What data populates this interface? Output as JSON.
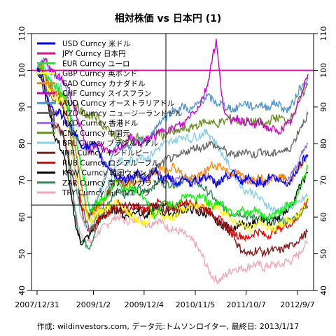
{
  "chart_data": {
    "type": "line",
    "title": "相対株価 vs 日本円 (1)",
    "caption": "作成: wildinvestors.com, データ元:トムソンロイター, 最終日: 2013/1/17",
    "x_tick_labels": [
      "2007/12/31",
      "2009/1/2",
      "2009/12/4",
      "2010/11/5",
      "2011/10/7",
      "2012/9/7"
    ],
    "x_tick_positions": [
      0,
      0.208,
      0.395,
      0.584,
      0.772,
      0.961
    ],
    "y_ticks": [
      40,
      50,
      60,
      70,
      80,
      90,
      100,
      110
    ],
    "ylim": [
      40,
      110
    ],
    "reference_line": 100,
    "legend": [
      {
        "name": "USD Curncy 米ドル",
        "color": "#0000ff"
      },
      {
        "name": "JPY Curncy 日本円",
        "color": "#ee0099"
      },
      {
        "name": "EUR Curncy ユーロ",
        "color": "#00ff00"
      },
      {
        "name": "GBP Curncy 英ポンド",
        "color": "#ffff00"
      },
      {
        "name": "CAD Curncy カナダドル",
        "color": "#ff8800"
      },
      {
        "name": "CHF Curncy スイスフラン",
        "color": "#cc00cc"
      },
      {
        "name": "AUD Curncy オーストラリアドル",
        "color": "#4f94cd"
      },
      {
        "name": "NZD Curncy ニュージーランドドル",
        "color": "#666666"
      },
      {
        "name": "HKD Curncy 香港ドル",
        "color": "#9370db"
      },
      {
        "name": "CNY Curncy 中国元",
        "color": "#6b8e23"
      },
      {
        "name": "BRL Curncy ブラジルレアル",
        "color": "#87ceeb"
      },
      {
        "name": "INR Curncy インドルピー",
        "color": "#8b1a1a"
      },
      {
        "name": "RUB Curncy ロシアルーブル",
        "color": "#ee0000"
      },
      {
        "name": "KRW Curncy 韓国ウォン",
        "color": "#000000"
      },
      {
        "name": "ZAR Curncy 南アフリカランド",
        "color": "#2e8b57"
      },
      {
        "name": "TRY Curncy 新トルコリラ",
        "color": "#f4a6b4"
      }
    ],
    "series": [
      {
        "name": "USD Curncy 米ドル",
        "color": "#0000ff",
        "values": [
          100,
          99,
          94,
          91,
          88,
          89,
          87,
          85,
          84,
          82,
          80,
          79,
          79,
          80,
          78,
          75,
          74,
          73,
          71,
          71,
          70,
          71,
          71,
          72,
          70,
          70,
          72,
          73,
          71,
          70,
          71,
          70,
          69,
          70,
          71,
          69,
          70,
          70,
          71,
          71,
          70,
          69,
          70,
          71,
          71,
          72,
          70,
          69,
          71,
          70,
          69,
          70,
          69,
          71,
          71,
          70,
          70,
          69,
          70,
          72,
          74,
          76,
          77
        ]
      },
      {
        "name": "JPY Curncy 日本円",
        "color": "#ee0099",
        "values": [
          100,
          100,
          100,
          100,
          100,
          100,
          100,
          100,
          100,
          100,
          100,
          100,
          100,
          100,
          100,
          100,
          100,
          100,
          100,
          100,
          100,
          100,
          100,
          100,
          100,
          100,
          100,
          100,
          100,
          100,
          100,
          100,
          100,
          100,
          100,
          100,
          100,
          100,
          100,
          100,
          100,
          100,
          100,
          100,
          100,
          100,
          100,
          100,
          100,
          100,
          100,
          100,
          100,
          100,
          100,
          100,
          100,
          100,
          100,
          100,
          100,
          100,
          100
        ]
      },
      {
        "name": "EUR Curncy ユーロ",
        "color": "#00ff00",
        "values": [
          100,
          101,
          99,
          97,
          96,
          95,
          93,
          90,
          85,
          80,
          74,
          69,
          62,
          63,
          64,
          65,
          66,
          68,
          70,
          69,
          67,
          68,
          68,
          67,
          66,
          65,
          62,
          60,
          62,
          64,
          64,
          63,
          64,
          65,
          66,
          66,
          65,
          66,
          66,
          64,
          63,
          64,
          64,
          63,
          62,
          61,
          62,
          62,
          61,
          61,
          62,
          61,
          60,
          60,
          61,
          61,
          62,
          63,
          63,
          64,
          68,
          71,
          74
        ]
      },
      {
        "name": "GBP Curncy 英ポンド",
        "color": "#ffff00",
        "values": [
          100,
          99,
          97,
          94,
          93,
          92,
          91,
          86,
          78,
          71,
          66,
          62,
          59,
          60,
          61,
          62,
          63,
          63,
          64,
          64,
          62,
          61,
          60,
          59,
          58,
          59,
          60,
          61,
          61,
          60,
          60,
          60,
          61,
          62,
          62,
          63,
          63,
          63,
          64,
          64,
          63,
          63,
          62,
          61,
          60,
          59,
          58,
          58,
          57,
          57,
          58,
          59,
          58,
          57,
          57,
          57,
          58,
          59,
          59,
          60,
          61,
          63,
          65
        ]
      },
      {
        "name": "CAD Curncy カナダドル",
        "color": "#ff8800",
        "values": [
          100,
          101,
          99,
          95,
          94,
          94,
          93,
          90,
          84,
          77,
          70,
          64,
          59,
          61,
          63,
          64,
          66,
          68,
          70,
          70,
          68,
          69,
          69,
          70,
          70,
          70,
          71,
          72,
          73,
          73,
          73,
          74,
          73,
          72,
          71,
          70,
          71,
          71,
          72,
          73,
          74,
          74,
          74,
          73,
          72,
          72,
          72,
          71,
          70,
          70,
          71,
          71,
          70,
          70,
          71,
          71,
          71,
          70,
          70,
          71,
          74,
          75,
          77
        ]
      },
      {
        "name": "CHF Curncy スイスフラン",
        "color": "#cc00cc",
        "values": [
          100,
          101,
          103,
          100,
          99,
          98,
          97,
          96,
          92,
          88,
          84,
          80,
          78,
          79,
          80,
          79,
          78,
          77,
          78,
          79,
          80,
          82,
          81,
          80,
          80,
          81,
          82,
          82,
          83,
          84,
          84,
          84,
          85,
          85,
          86,
          88,
          89,
          90,
          93,
          96,
          103,
          108,
          96,
          88,
          86,
          87,
          87,
          86,
          86,
          85,
          85,
          86,
          85,
          84,
          84,
          83,
          84,
          85,
          86,
          88,
          92,
          96,
          99
        ]
      },
      {
        "name": "AUD Curncy オーストラリアドル",
        "color": "#4f94cd",
        "values": [
          100,
          102,
          103,
          100,
          99,
          98,
          97,
          93,
          86,
          77,
          69,
          64,
          60,
          63,
          66,
          69,
          73,
          76,
          79,
          80,
          78,
          79,
          80,
          81,
          81,
          80,
          82,
          84,
          86,
          87,
          88,
          89,
          89,
          90,
          90,
          89,
          90,
          91,
          92,
          93,
          92,
          91,
          91,
          90,
          90,
          89,
          90,
          91,
          91,
          90,
          90,
          91,
          90,
          90,
          91,
          91,
          90,
          89,
          90,
          92,
          95,
          96,
          98
        ]
      },
      {
        "name": "NZD Curncy ニュージーランドドル",
        "color": "#666666",
        "values": [
          100,
          101,
          99,
          96,
          94,
          92,
          90,
          86,
          80,
          72,
          65,
          60,
          56,
          58,
          61,
          63,
          66,
          68,
          70,
          70,
          68,
          70,
          70,
          71,
          72,
          71,
          72,
          73,
          74,
          75,
          76,
          76,
          76,
          77,
          78,
          78,
          79,
          79,
          79,
          80,
          80,
          79,
          79,
          78,
          77,
          77,
          77,
          78,
          78,
          77,
          77,
          78,
          78,
          77,
          77,
          78,
          78,
          78,
          79,
          81,
          84,
          86,
          88
        ]
      },
      {
        "name": "HKD Curncy 香港ドル",
        "color": "#9370db",
        "values": [
          100,
          99,
          94,
          91,
          88,
          89,
          87,
          85,
          84,
          82,
          80,
          79,
          79,
          80,
          78,
          75,
          74,
          73,
          72,
          71,
          70,
          71,
          71,
          72,
          71,
          70,
          72,
          73,
          72,
          70,
          71,
          70,
          70,
          70,
          71,
          70,
          70,
          70,
          71,
          71,
          70,
          69,
          70,
          71,
          71,
          72,
          71,
          70,
          71,
          70,
          70,
          70,
          69,
          71,
          71,
          70,
          71,
          70,
          71,
          73,
          76,
          78,
          80
        ]
      },
      {
        "name": "CNY Curncy 中国元",
        "color": "#6b8e23",
        "values": [
          100,
          100,
          96,
          93,
          92,
          93,
          93,
          92,
          91,
          90,
          89,
          88,
          87,
          88,
          87,
          85,
          84,
          83,
          82,
          81,
          80,
          81,
          81,
          82,
          81,
          81,
          82,
          83,
          83,
          82,
          83,
          83,
          83,
          84,
          84,
          84,
          85,
          85,
          86,
          86,
          86,
          85,
          86,
          86,
          87,
          87,
          86,
          86,
          86,
          86,
          86,
          86,
          85,
          86,
          87,
          87,
          87,
          86,
          87,
          89,
          92,
          94,
          96
        ]
      },
      {
        "name": "BRL Curncy ブラジルレアル",
        "color": "#87ceeb",
        "values": [
          100,
          102,
          101,
          97,
          96,
          96,
          95,
          89,
          78,
          68,
          60,
          58,
          56,
          59,
          62,
          65,
          68,
          71,
          74,
          76,
          74,
          75,
          76,
          76,
          77,
          76,
          77,
          78,
          79,
          80,
          80,
          81,
          81,
          82,
          82,
          81,
          82,
          82,
          83,
          83,
          82,
          80,
          78,
          76,
          74,
          72,
          70,
          68,
          67,
          67,
          66,
          65,
          64,
          63,
          62,
          62,
          62,
          63,
          63,
          63,
          64,
          65,
          66
        ]
      },
      {
        "name": "INR Curncy インドルピー",
        "color": "#8b1a1a",
        "values": [
          100,
          99,
          94,
          90,
          86,
          84,
          82,
          78,
          72,
          67,
          63,
          62,
          61,
          62,
          63,
          62,
          62,
          62,
          62,
          62,
          61,
          62,
          62,
          63,
          62,
          62,
          62,
          63,
          63,
          62,
          62,
          62,
          62,
          63,
          63,
          63,
          62,
          62,
          62,
          62,
          61,
          59,
          58,
          57,
          56,
          55,
          52,
          51,
          50,
          50,
          51,
          51,
          50,
          51,
          51,
          51,
          51,
          52,
          52,
          53,
          54,
          55,
          56
        ]
      },
      {
        "name": "RUB Curncy ロシアルーブル",
        "color": "#ee0000",
        "values": [
          100,
          100,
          98,
          95,
          93,
          92,
          90,
          87,
          80,
          72,
          64,
          58,
          56,
          57,
          59,
          60,
          61,
          62,
          63,
          64,
          63,
          63,
          63,
          63,
          62,
          62,
          63,
          64,
          64,
          63,
          63,
          63,
          63,
          64,
          64,
          64,
          64,
          63,
          63,
          62,
          61,
          60,
          59,
          58,
          57,
          56,
          55,
          55,
          54,
          55,
          56,
          56,
          55,
          55,
          56,
          57,
          57,
          58,
          58,
          59,
          61,
          63,
          65
        ]
      },
      {
        "name": "KRW Curncy 韓国ウォン",
        "color": "#000000",
        "values": [
          100,
          98,
          92,
          88,
          82,
          80,
          77,
          72,
          64,
          57,
          53,
          54,
          55,
          57,
          59,
          60,
          61,
          62,
          62,
          62,
          60,
          61,
          61,
          62,
          61,
          60,
          61,
          62,
          62,
          61,
          61,
          61,
          61,
          62,
          62,
          62,
          62,
          61,
          61,
          61,
          60,
          59,
          58,
          58,
          57,
          57,
          58,
          58,
          57,
          58,
          59,
          59,
          59,
          58,
          59,
          60,
          61,
          62,
          63,
          65,
          68,
          70,
          72
        ]
      },
      {
        "name": "ZAR Curncy 南アフリカランド",
        "color": "#2e8b57",
        "values": [
          100,
          99,
          95,
          89,
          85,
          84,
          82,
          77,
          68,
          59,
          54,
          53,
          52,
          55,
          58,
          60,
          63,
          65,
          67,
          68,
          66,
          67,
          67,
          68,
          67,
          67,
          68,
          69,
          70,
          69,
          69,
          69,
          69,
          70,
          70,
          70,
          70,
          69,
          68,
          67,
          66,
          64,
          63,
          62,
          61,
          61,
          61,
          61,
          60,
          60,
          60,
          60,
          59,
          59,
          59,
          59,
          59,
          59,
          59,
          60,
          61,
          62,
          63
        ]
      },
      {
        "name": "TRY Curncy 新トルコリラ",
        "color": "#f4a6b4",
        "values": [
          100,
          99,
          94,
          89,
          85,
          84,
          82,
          77,
          68,
          60,
          55,
          54,
          53,
          54,
          56,
          57,
          58,
          59,
          60,
          60,
          59,
          59,
          59,
          60,
          59,
          58,
          58,
          59,
          59,
          58,
          57,
          57,
          56,
          56,
          55,
          54,
          53,
          51,
          49,
          46,
          44,
          43,
          43,
          44,
          45,
          46,
          46,
          46,
          46,
          47,
          47,
          47,
          46,
          47,
          47,
          47,
          47,
          48,
          48,
          49,
          50,
          52,
          53
        ]
      }
    ]
  }
}
